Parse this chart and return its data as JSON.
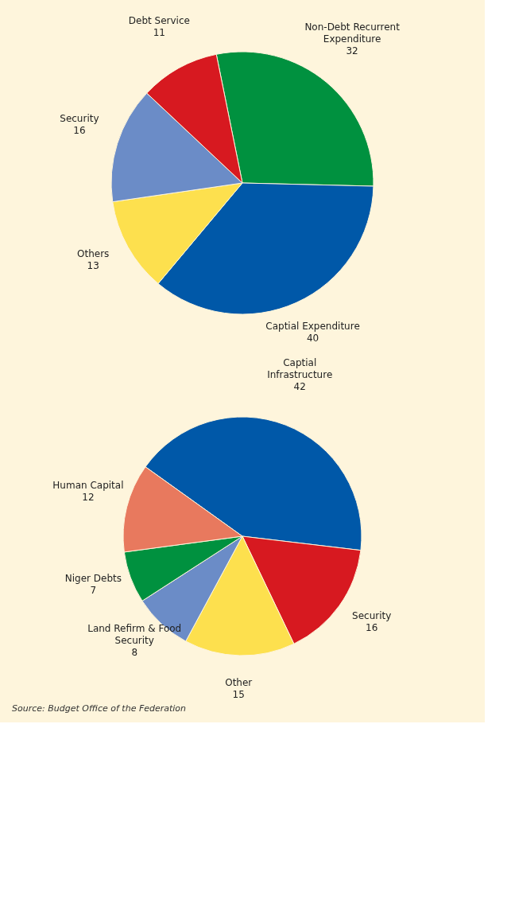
{
  "chart_data": [
    {
      "type": "pie",
      "categories": [
        "Non-Debt Recurrent Expenditure",
        "Captial Expenditure",
        "Others",
        "Security",
        "Debt Service"
      ],
      "values": [
        32,
        40,
        13,
        16,
        11
      ],
      "colors": [
        "#00913f",
        "#0058a8",
        "#fde04e",
        "#6b8cc7",
        "#d71920"
      ],
      "data_labels": true
    },
    {
      "type": "pie",
      "categories": [
        "Captial Infrastructure",
        "Security",
        "Other",
        "Land Refirm & Food Security",
        "Niger Debts",
        "Human Capital"
      ],
      "values": [
        42,
        16,
        15,
        8,
        7,
        12
      ],
      "colors": [
        "#0058a8",
        "#d71920",
        "#fde04e",
        "#6b8cc7",
        "#00913f",
        "#e8795e"
      ],
      "data_labels": true,
      "annotations": [
        "Source: Budget Office of the Federation"
      ]
    }
  ]
}
